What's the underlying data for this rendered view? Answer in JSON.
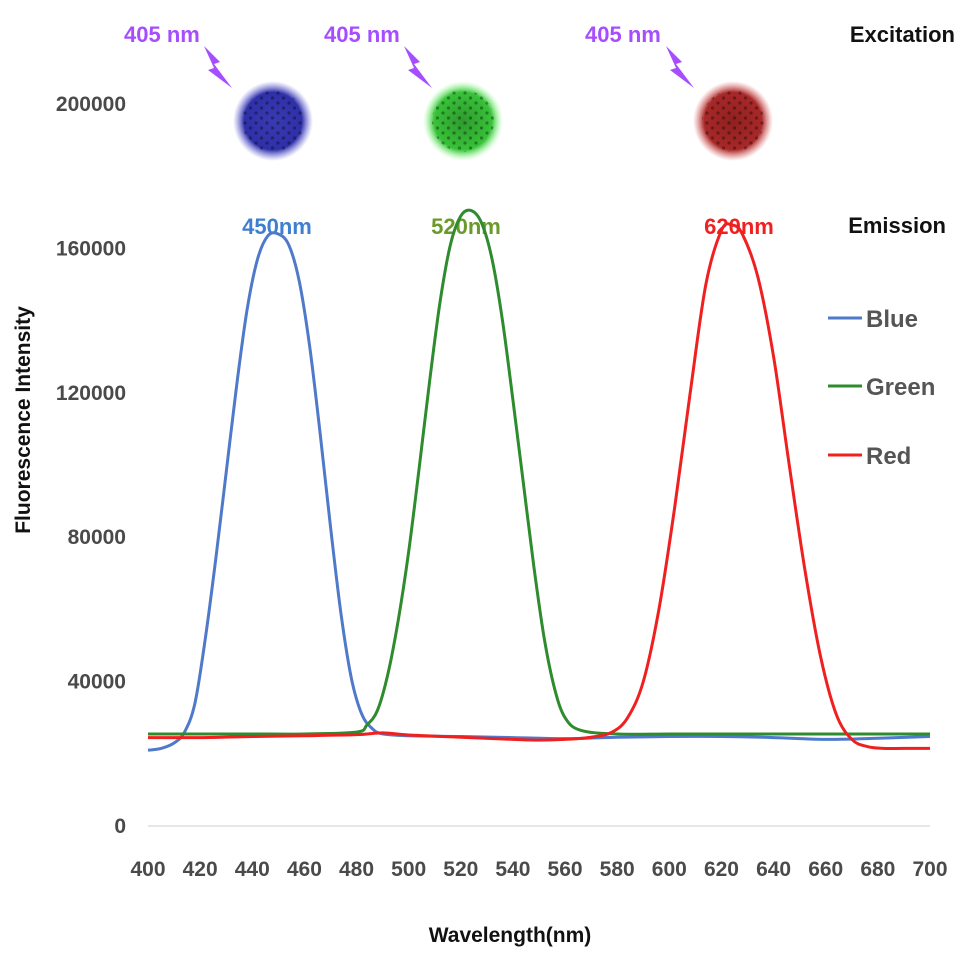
{
  "chart_data": {
    "type": "line",
    "xlabel": "Wavelength(nm)",
    "ylabel": "Fluorescence Intensity",
    "xlim": [
      400,
      700
    ],
    "ylim": [
      0,
      210000
    ],
    "x_ticks": [
      400,
      420,
      440,
      460,
      480,
      500,
      520,
      540,
      560,
      580,
      600,
      620,
      640,
      660,
      680,
      700
    ],
    "y_ticks": [
      0,
      40000,
      80000,
      120000,
      160000,
      200000
    ],
    "grid": false,
    "legend_position": "right",
    "series": [
      {
        "name": "Blue",
        "color": "#4f79c9",
        "x": [
          400,
          405,
          410,
          414,
          418,
          422,
          426,
          430,
          434,
          438,
          442,
          446,
          450,
          454,
          458,
          462,
          466,
          470,
          474,
          478,
          482,
          486,
          490,
          500,
          520,
          540,
          560,
          580,
          600,
          620,
          640,
          660,
          680,
          700
        ],
        "y": [
          21000,
          21500,
          23000,
          26000,
          34000,
          52000,
          74000,
          98000,
          122000,
          143000,
          157000,
          163500,
          164000,
          161000,
          151000,
          133000,
          109000,
          83000,
          59000,
          41000,
          31000,
          27000,
          25500,
          25000,
          24800,
          24500,
          24200,
          24600,
          24800,
          24800,
          24500,
          24000,
          24300,
          24800
        ]
      },
      {
        "name": "Green",
        "color": "#2e8b2e",
        "x": [
          400,
          420,
          440,
          460,
          480,
          484,
          488,
          492,
          496,
          500,
          504,
          508,
          512,
          516,
          520,
          524,
          528,
          532,
          536,
          540,
          544,
          548,
          552,
          556,
          560,
          566,
          580,
          600,
          620,
          640,
          660,
          680,
          700
        ],
        "y": [
          25500,
          25500,
          25500,
          25500,
          26000,
          28000,
          32000,
          42000,
          57000,
          76000,
          99000,
          123000,
          145000,
          161000,
          169000,
          170500,
          167000,
          157000,
          140000,
          118000,
          95000,
          72000,
          52000,
          38000,
          30000,
          26500,
          25500,
          25500,
          25500,
          25500,
          25500,
          25500,
          25500
        ]
      },
      {
        "name": "Red",
        "color": "#f02020",
        "x": [
          400,
          420,
          440,
          460,
          480,
          490,
          500,
          520,
          540,
          550,
          560,
          570,
          578,
          584,
          590,
          596,
          602,
          608,
          614,
          620,
          624,
          628,
          634,
          640,
          646,
          652,
          658,
          664,
          670,
          676,
          682,
          690,
          700
        ],
        "y": [
          24500,
          24500,
          24800,
          25000,
          25300,
          25800,
          25200,
          24600,
          24000,
          23800,
          24000,
          24600,
          26000,
          30000,
          40000,
          60000,
          88000,
          120000,
          150000,
          165000,
          166500,
          164000,
          152000,
          130000,
          100000,
          71000,
          47000,
          31000,
          24000,
          22000,
          21500,
          21500,
          21500
        ]
      }
    ],
    "annotations": {
      "excitation_label": "Excitation",
      "emission_label": "Emission",
      "excitation_wavelength": "405 nm",
      "peaks": [
        {
          "label": "450nm",
          "color": "#3f7fd0",
          "dot_color": "#3333aa"
        },
        {
          "label": "520nm",
          "color": "#6a9a2a",
          "dot_color": "#33cc33"
        },
        {
          "label": "620nm",
          "color": "#f02020",
          "dot_color": "#aa2222"
        }
      ]
    }
  }
}
